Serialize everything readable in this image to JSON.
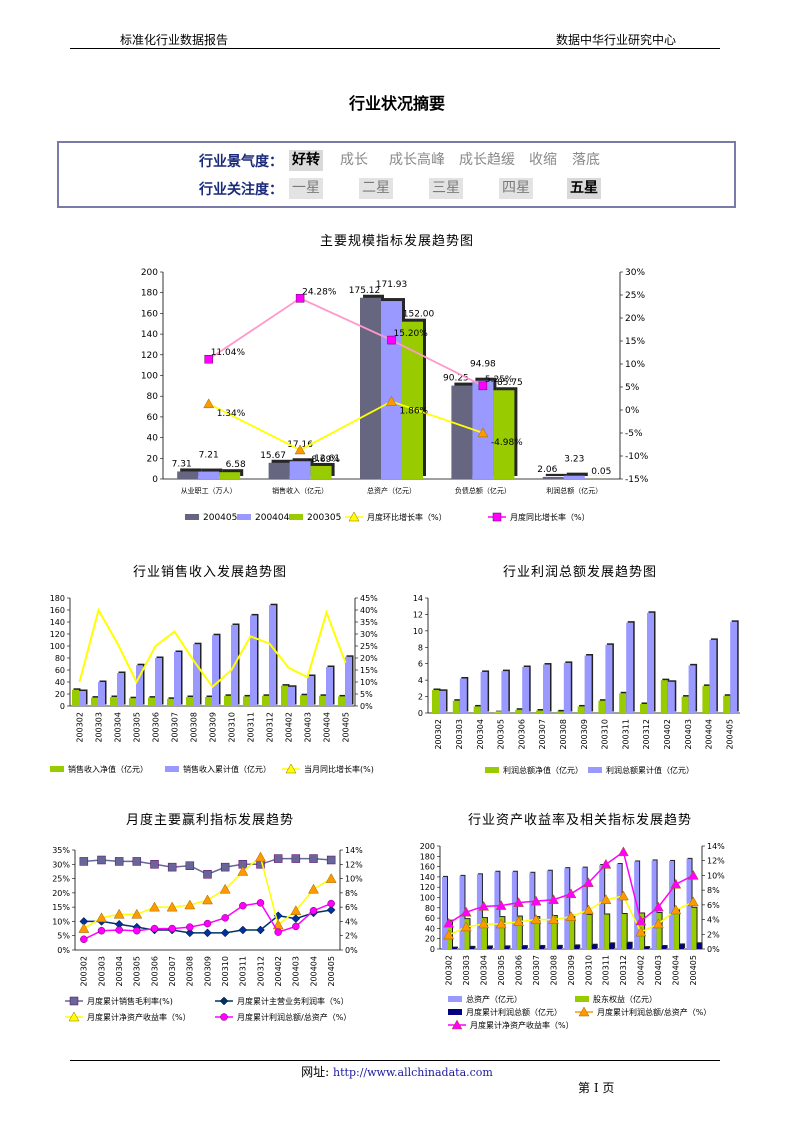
{
  "header": {
    "left": "标准化行业数据报告",
    "right": "数据中华行业研究中心"
  },
  "page_title": "行业状况摘要",
  "summary": {
    "row1_label": "行业景气度：",
    "row1_items": [
      "好转",
      "成长",
      "成长高峰",
      "成长趋缓",
      "收缩",
      "落底"
    ],
    "row2_label": "行业关注度：",
    "row2_items": [
      "一星",
      "二星",
      "三星",
      "四星",
      "五星"
    ]
  },
  "chart_titles": {
    "c1": "主要规模指标发展趋势图",
    "c2": "行业销售收入发展趋势图",
    "c3": "行业利润总额发展趋势图",
    "c4": "月度主要赢利指标发展趋势",
    "c5": "行业资产收益率及相关指标发展趋势"
  },
  "footer": {
    "label": "网址:",
    "url": "http://www.allchinadata.com",
    "page": "第 I 页"
  },
  "colors": {
    "dark": "#666680",
    "lav": "#9999ff",
    "green": "#99cc00",
    "yellow": "#ffff00",
    "magenta": "#ff00ff",
    "pink": "#ff99cc",
    "orange": "#ff9900",
    "navy": "#000080"
  },
  "chart_data": [
    {
      "type": "bar",
      "categories": [
        "从业职工（万人）",
        "销售收入（亿元）",
        "总资产（亿元）",
        "负债总额（亿元）",
        "利润总额（亿元）"
      ],
      "series": [
        {
          "name": "200405",
          "values": [
            7.31,
            15.67,
            175.12,
            90.25,
            2.06
          ]
        },
        {
          "name": "200404",
          "values": [
            7.21,
            17.16,
            171.93,
            94.98,
            3.23
          ]
        },
        {
          "name": "200305",
          "values": [
            6.58,
            12.61,
            152.0,
            85.75,
            0.05
          ]
        }
      ],
      "line_series": [
        {
          "name": "月度环比增长率（%）",
          "values": [
            1.34,
            -8.69,
            1.86,
            -4.98
          ]
        },
        {
          "name": "月度同比增长率（%）",
          "values": [
            11.04,
            24.28,
            15.2,
            5.25
          ]
        }
      ],
      "ylim": [
        0,
        200
      ],
      "y2lim": [
        -15,
        30
      ]
    },
    {
      "type": "bar",
      "categories": [
        "200302",
        "200303",
        "200304",
        "200305",
        "200306",
        "200307",
        "200308",
        "200309",
        "200310",
        "200311",
        "200312",
        "200402",
        "200403",
        "200404",
        "200405"
      ],
      "series": [
        {
          "name": "销售收入净值（亿元）",
          "values": [
            27,
            14,
            15,
            13,
            14,
            12,
            15,
            15,
            17,
            16,
            17,
            34,
            18,
            17,
            16
          ]
        },
        {
          "name": "销售收入累计值（亿元）",
          "values": [
            25,
            40,
            55,
            68,
            80,
            90,
            103,
            118,
            135,
            151,
            168,
            32,
            50,
            65,
            82
          ]
        }
      ],
      "line_series": [
        {
          "name": "当月同比增长率(%)",
          "values": [
            10,
            40,
            26,
            10,
            25,
            31,
            19,
            8,
            15,
            29,
            26,
            16,
            12,
            39,
            18
          ]
        }
      ],
      "ylim": [
        0,
        180
      ],
      "y2lim": [
        0,
        45
      ]
    },
    {
      "type": "bar",
      "categories": [
        "200302",
        "200303",
        "200304",
        "200305",
        "200306",
        "200307",
        "200308",
        "200309",
        "200310",
        "200311",
        "200312",
        "200402",
        "200403",
        "200404",
        "200405"
      ],
      "series": [
        {
          "name": "利润总额净值（亿元）",
          "values": [
            2.8,
            1.5,
            0.8,
            0.1,
            0.4,
            0.3,
            0.2,
            0.8,
            1.5,
            2.4,
            1.1,
            4.0,
            2.0,
            3.3,
            2.1
          ]
        },
        {
          "name": "利润总额累计值（亿元）",
          "values": [
            2.7,
            4.2,
            5.0,
            5.1,
            5.6,
            5.9,
            6.1,
            7.0,
            8.3,
            11.0,
            12.2,
            3.8,
            5.8,
            8.9,
            11.1
          ]
        }
      ],
      "ylim": [
        0,
        14
      ]
    },
    {
      "type": "line",
      "categories": [
        "200302",
        "200303",
        "200304",
        "200305",
        "200306",
        "200307",
        "200308",
        "200309",
        "200310",
        "200311",
        "200312",
        "200402",
        "200403",
        "200404",
        "200405"
      ],
      "series": [
        {
          "name": "月度累计销售毛利率(%)",
          "axis": "left",
          "values": [
            31,
            31.5,
            31,
            31,
            30,
            29,
            29.5,
            26.5,
            29,
            30,
            30,
            32,
            32,
            32,
            31.5
          ]
        },
        {
          "name": "月度累计主营业务利润率（%）",
          "axis": "left",
          "values": [
            10,
            10,
            9,
            8,
            7,
            7,
            6,
            6,
            6,
            7,
            7,
            12,
            11,
            13,
            14
          ]
        },
        {
          "name": "月度累计净资产收益率（%）",
          "axis": "right",
          "values": [
            3,
            4.5,
            5,
            5,
            6,
            6,
            6.3,
            7,
            8.5,
            11,
            13,
            3.5,
            5.5,
            8.5,
            10
          ]
        },
        {
          "name": "月度累计利润总额/总资产（%）",
          "axis": "right",
          "values": [
            1.5,
            2.7,
            2.8,
            2.7,
            3.0,
            3.0,
            3.2,
            3.7,
            4.5,
            6.2,
            6.6,
            2.5,
            3.3,
            5.5,
            6.5
          ]
        }
      ],
      "ylim": [
        0,
        35
      ],
      "y2lim": [
        0,
        14
      ]
    },
    {
      "type": "bar",
      "categories": [
        "200302",
        "200303",
        "200304",
        "200305",
        "200306",
        "200307",
        "200308",
        "200309",
        "200310",
        "200311",
        "200312",
        "200402",
        "200403",
        "200404",
        "200405"
      ],
      "series": [
        {
          "name": "总资产（亿元）",
          "values": [
            140,
            142,
            145,
            150,
            150,
            148,
            152,
            157,
            158,
            163,
            165,
            170,
            172,
            171,
            175
          ]
        },
        {
          "name": "股东权益（亿元）",
          "values": [
            55,
            58,
            60,
            62,
            63,
            62,
            64,
            65,
            66,
            67,
            68,
            69,
            70,
            75,
            80
          ]
        },
        {
          "name": "月度累计利润总额（亿元）",
          "values": [
            2.7,
            4.2,
            5.0,
            5.1,
            5.6,
            5.9,
            6.1,
            7.0,
            8.3,
            11.0,
            12.2,
            3.8,
            5.8,
            8.9,
            11.1
          ]
        }
      ],
      "line_series": [
        {
          "name": "月度累计利润总额/总资产（%）",
          "values": [
            1.9,
            3.0,
            3.4,
            3.4,
            3.7,
            4.0,
            4.0,
            4.4,
            5.3,
            6.7,
            7.2,
            2.3,
            3.4,
            5.3,
            6.4
          ]
        },
        {
          "name": "月度累计净资产收益率（%）",
          "values": [
            3.5,
            5.0,
            5.8,
            5.9,
            6.3,
            6.5,
            6.7,
            7.5,
            9.0,
            11.5,
            13.2,
            3.8,
            5.7,
            8.8,
            10.0
          ]
        }
      ],
      "ylim": [
        0,
        200
      ],
      "y2lim": [
        0,
        14
      ]
    }
  ]
}
